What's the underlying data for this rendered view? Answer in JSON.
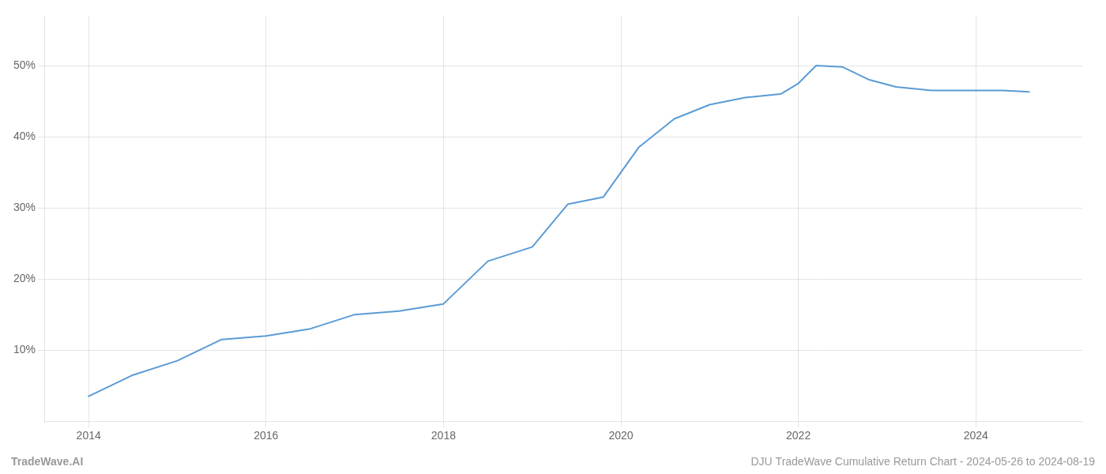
{
  "chart_data": {
    "type": "line",
    "x": [
      2014.0,
      2014.5,
      2015.0,
      2015.5,
      2016.0,
      2016.5,
      2017.0,
      2017.5,
      2018.0,
      2018.5,
      2019.0,
      2019.4,
      2019.8,
      2020.2,
      2020.6,
      2021.0,
      2021.4,
      2021.8,
      2022.0,
      2022.2,
      2022.5,
      2022.8,
      2023.1,
      2023.5,
      2024.0,
      2024.3,
      2024.6
    ],
    "values": [
      3.5,
      6.5,
      8.5,
      11.5,
      12.0,
      13.0,
      15.0,
      15.5,
      16.5,
      22.5,
      24.5,
      30.5,
      31.5,
      38.5,
      42.5,
      44.5,
      45.5,
      46.0,
      47.5,
      50.0,
      49.8,
      48.0,
      47.0,
      46.5,
      46.5,
      46.5,
      46.3
    ],
    "color": "#5b9bd5",
    "xlim": [
      2013.5,
      2025.2
    ],
    "xticks": [
      2014,
      2016,
      2018,
      2020,
      2022,
      2024
    ],
    "ylim": [
      0,
      57
    ],
    "yticks": [
      {
        "value": 10,
        "label": "10%"
      },
      {
        "value": 20,
        "label": "20%"
      },
      {
        "value": 30,
        "label": "30%"
      },
      {
        "value": 40,
        "label": "40%"
      },
      {
        "value": 50,
        "label": "50%"
      }
    ],
    "grid": true,
    "annotations": [
      "TradeWave.AI",
      "DJU TradeWave Cumulative Return Chart - 2024-05-26 to 2024-08-19"
    ]
  }
}
